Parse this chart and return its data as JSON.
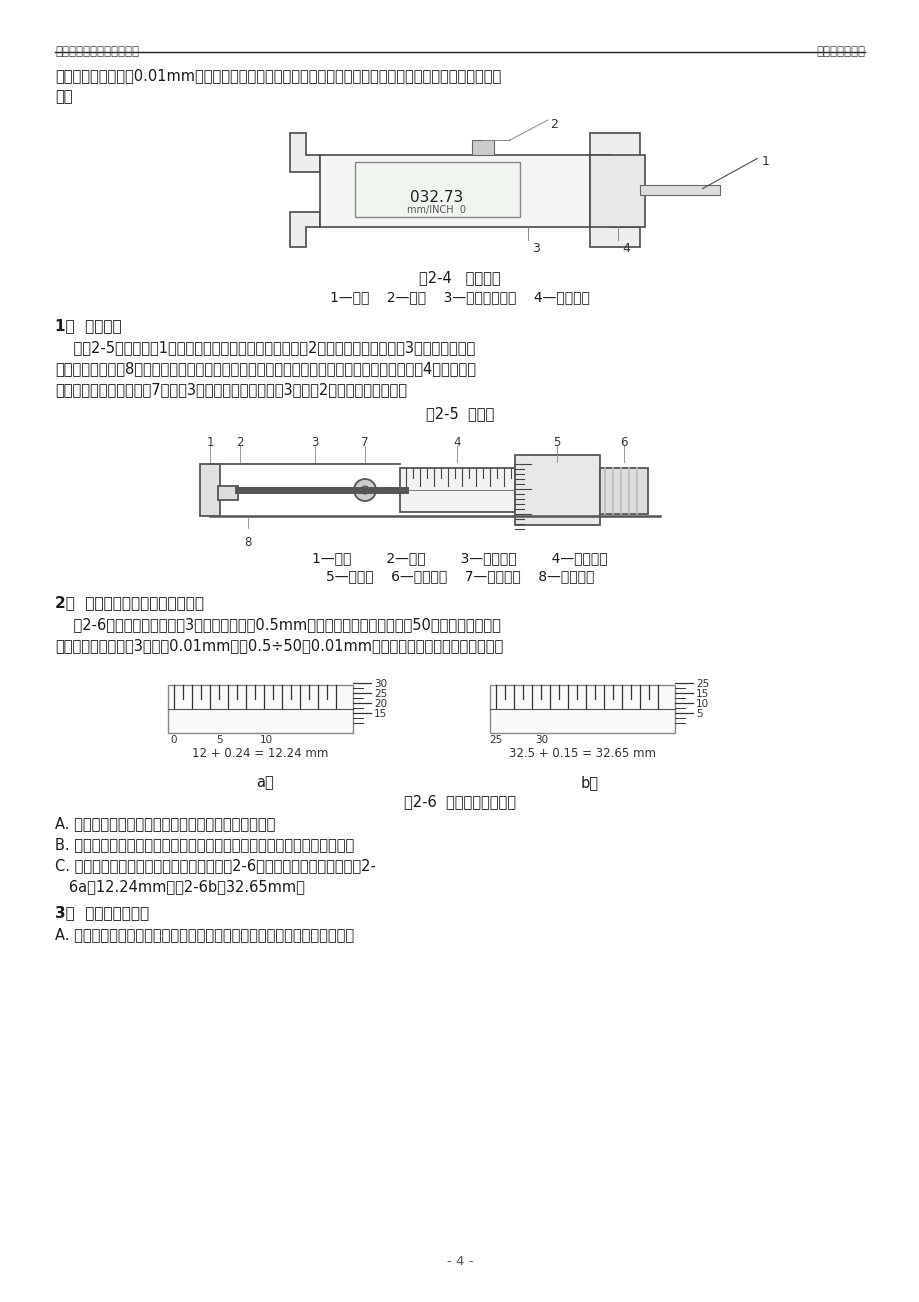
{
  "header_left": "大庆精工轴承内部培训资料",
  "header_right": "检验员技能培训",
  "page_num": "- 4 -",
  "bg_color": "#ffffff",
  "text_color": "#1a1a1a",
  "fig24_caption": "图2-4   数显卡尺",
  "fig24_labels": "1—尺身    2—尺框    3—公英制转换钮    4—置零按钮",
  "fig24_display": "032.73",
  "fig24_display2": "mm/INCH  0",
  "fig25_caption": "图2-5  千分尺",
  "fig25_labels1": "1—尺架        2—测砧        3—测微螺杆        4—固定套筒",
  "fig25_labels2": "5—微分筒    6—测力装置    7—锁紧装置    8—隔热装置",
  "fig26_caption": "图2-6  千分尺的读数方法",
  "fig26_sub_a": "a）",
  "fig26_sub_b": "b）",
  "fig26_formula_a": "12 + 0.24 = 12.24 mm",
  "fig26_formula_b": "32.5 + 0.15 = 32.65 mm",
  "body_lines": [
    "制，其分度值一般为0.01mm，但其测量精度比游标卡尺高，而且又比较灵敏，故用来测量加工精度较高的工",
    "件。"
  ],
  "sec1_num": "1）",
  "sec1_title": "外形结构",
  "sec1_lines": [
    "    如图2-5所示，图中1是尺架，尺架的左端装有固定的测砧2，另一端装有测微螺杆3。尺架的两侧面",
    "上覆盖着隔热装置8，以防止使用时的手温传给千分尺，影响测量精度，尺架的右端有固定套筒4，套筒表面",
    "上有刻度。转动锁紧装置7可锁紧3固定不动，当测微螺杆3与测砧2接触时即停止前进。"
  ],
  "sec2_num": "2）",
  "sec2_title": "千分尺的套筒刻线及读数方法",
  "sec2_lines": [
    "    图2-6中千分尺的测微螺杆3的左端的螺距为0.5mm，当微分筒圆锥面上共刻有50格，因此当活动套",
    "筒转一格，测微螺杆3就移动0.01mm。即0.5÷50＝0.01mm。千分尺上的读数方法可分三步："
  ],
  "sec2_bullets": [
    "A. 先读出固定套筒上露出的刻线整毫米数和半毫米数；",
    "B. 看准微分筒上哪一格与固定套筒上基准线对齐，并读出不足半毫米的数；",
    "C. 把两个读数加起来为测得的实际尺寸，图2-6是千分尺所表示的尺寸，图2-",
    "   6a为12.24mm，图2-6b为32.65mm。"
  ],
  "sec3_num": "3）",
  "sec3_title": "使用时注意事项",
  "sec3_lines": [
    "A. 千分尺的测量面应擦干净，并使两测量面接触，看其微分筒上零线是否与"
  ]
}
